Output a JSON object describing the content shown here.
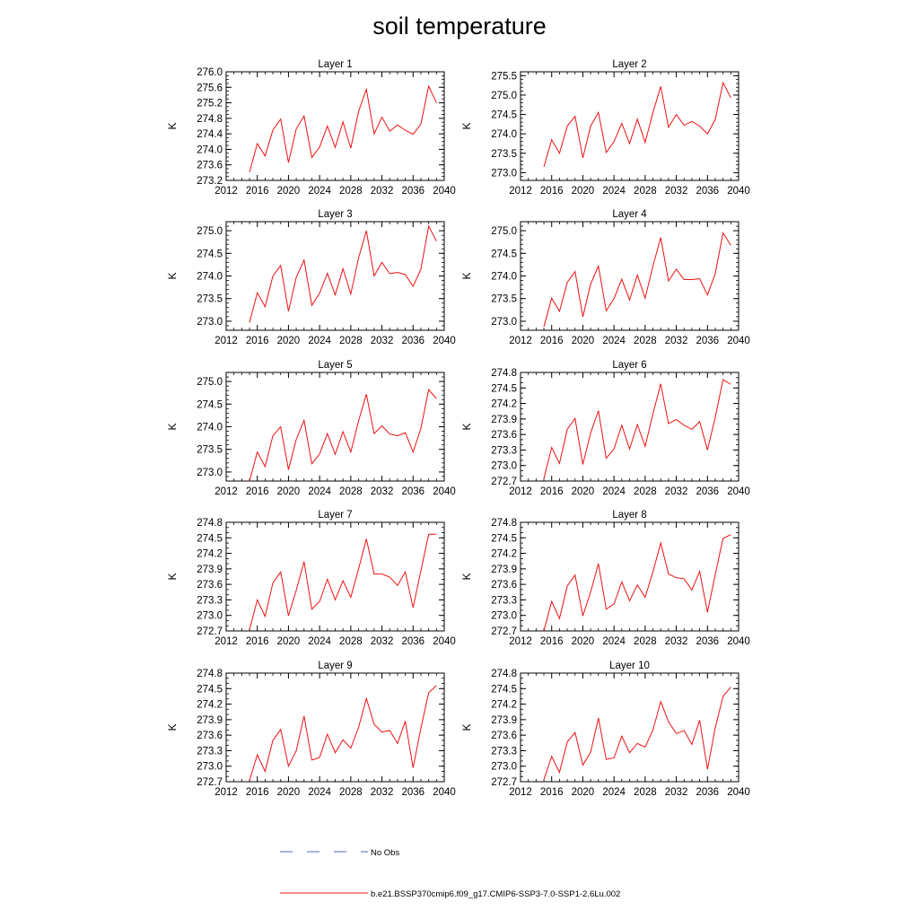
{
  "page": {
    "title": "soil temperature"
  },
  "chart_data": [
    {
      "type": "line",
      "title": "Layer 1",
      "ylabel": "K",
      "xlim": [
        2012,
        2040
      ],
      "xticks": [
        2012,
        2016,
        2020,
        2024,
        2028,
        2032,
        2036,
        2040
      ],
      "ylim": [
        273.2,
        276.0
      ],
      "yticks": [
        "273.2",
        "273.6",
        "274.0",
        "274.4",
        "274.8",
        "275.2",
        "275.6",
        "276.0"
      ],
      "yminor": 0.1,
      "x": [
        2015,
        2016,
        2017,
        2018,
        2019,
        2020,
        2021,
        2022,
        2023,
        2024,
        2025,
        2026,
        2027,
        2028,
        2029,
        2030,
        2031,
        2032,
        2033,
        2034,
        2035,
        2036,
        2037,
        2038,
        2039
      ],
      "series": [
        {
          "values": [
            273.41,
            274.15,
            273.83,
            274.5,
            274.78,
            273.66,
            274.53,
            274.86,
            273.79,
            274.06,
            274.6,
            274.05,
            274.71,
            274.03,
            274.98,
            275.55,
            274.4,
            274.83,
            274.47,
            274.63,
            274.49,
            274.39,
            274.65,
            275.63,
            275.2
          ],
          "color": "#ee1111"
        }
      ]
    },
    {
      "type": "line",
      "title": "Layer 2",
      "ylabel": "K",
      "xlim": [
        2012,
        2040
      ],
      "xticks": [
        2012,
        2016,
        2020,
        2024,
        2028,
        2032,
        2036,
        2040
      ],
      "ylim": [
        272.8,
        275.6
      ],
      "yticks": [
        "273.0",
        "273.5",
        "274.0",
        "274.5",
        "275.0",
        "275.5"
      ],
      "yminor": 0.1,
      "x": [
        2015,
        2016,
        2017,
        2018,
        2019,
        2020,
        2021,
        2022,
        2023,
        2024,
        2025,
        2026,
        2027,
        2028,
        2029,
        2030,
        2031,
        2032,
        2033,
        2034,
        2035,
        2036,
        2037,
        2038,
        2039
      ],
      "series": [
        {
          "values": [
            273.15,
            273.85,
            273.5,
            274.2,
            274.45,
            273.38,
            274.2,
            274.55,
            273.52,
            273.8,
            274.27,
            273.75,
            274.38,
            273.78,
            274.55,
            275.22,
            274.17,
            274.5,
            274.22,
            274.32,
            274.2,
            274.0,
            274.37,
            275.32,
            274.93
          ],
          "color": "#ee1111"
        }
      ]
    },
    {
      "type": "line",
      "title": "Layer 3",
      "ylabel": "K",
      "xlim": [
        2012,
        2040
      ],
      "xticks": [
        2012,
        2016,
        2020,
        2024,
        2028,
        2032,
        2036,
        2040
      ],
      "ylim": [
        272.8,
        275.2
      ],
      "yticks": [
        "273.0",
        "273.5",
        "274.0",
        "274.5",
        "275.0"
      ],
      "yminor": 0.1,
      "x": [
        2015,
        2016,
        2017,
        2018,
        2019,
        2020,
        2021,
        2022,
        2023,
        2024,
        2025,
        2026,
        2027,
        2028,
        2029,
        2030,
        2031,
        2032,
        2033,
        2034,
        2035,
        2036,
        2037,
        2038,
        2039
      ],
      "series": [
        {
          "values": [
            272.97,
            273.63,
            273.32,
            274.0,
            274.23,
            273.22,
            273.97,
            274.35,
            273.35,
            273.62,
            274.06,
            273.58,
            274.16,
            273.6,
            274.4,
            275.0,
            274.0,
            274.3,
            274.05,
            274.08,
            274.03,
            273.77,
            274.15,
            275.1,
            274.77
          ],
          "color": "#ee1111"
        }
      ]
    },
    {
      "type": "line",
      "title": "Layer 4",
      "ylabel": "K",
      "xlim": [
        2012,
        2040
      ],
      "xticks": [
        2012,
        2016,
        2020,
        2024,
        2028,
        2032,
        2036,
        2040
      ],
      "ylim": [
        272.8,
        275.2
      ],
      "yticks": [
        "273.0",
        "273.5",
        "274.0",
        "274.5",
        "275.0"
      ],
      "yminor": 0.1,
      "x": [
        2015,
        2016,
        2017,
        2018,
        2019,
        2020,
        2021,
        2022,
        2023,
        2024,
        2025,
        2026,
        2027,
        2028,
        2029,
        2030,
        2031,
        2032,
        2033,
        2034,
        2035,
        2036,
        2037,
        2038,
        2039
      ],
      "series": [
        {
          "values": [
            272.88,
            273.51,
            273.22,
            273.86,
            274.1,
            273.1,
            273.82,
            274.22,
            273.23,
            273.5,
            273.93,
            273.47,
            274.02,
            273.51,
            274.22,
            274.85,
            273.89,
            274.15,
            273.92,
            273.92,
            273.94,
            273.58,
            274.05,
            274.95,
            274.68
          ],
          "color": "#ee1111"
        }
      ]
    },
    {
      "type": "line",
      "title": "Layer 5",
      "ylabel": "K",
      "xlim": [
        2012,
        2040
      ],
      "xticks": [
        2012,
        2016,
        2020,
        2024,
        2028,
        2032,
        2036,
        2040
      ],
      "ylim": [
        272.8,
        275.2
      ],
      "yticks": [
        "273.0",
        "273.5",
        "274.0",
        "274.5",
        "275.0"
      ],
      "yminor": 0.1,
      "x": [
        2015,
        2016,
        2017,
        2018,
        2019,
        2020,
        2021,
        2022,
        2023,
        2024,
        2025,
        2026,
        2027,
        2028,
        2029,
        2030,
        2031,
        2032,
        2033,
        2034,
        2035,
        2036,
        2037,
        2038,
        2039
      ],
      "series": [
        {
          "values": [
            272.8,
            273.44,
            273.12,
            273.8,
            274.0,
            273.05,
            273.72,
            274.14,
            273.18,
            273.4,
            273.85,
            273.39,
            273.89,
            273.44,
            274.13,
            274.72,
            273.85,
            274.02,
            273.84,
            273.8,
            273.87,
            273.44,
            273.96,
            274.82,
            274.62
          ],
          "color": "#ee1111"
        }
      ]
    },
    {
      "type": "line",
      "title": "Layer 6",
      "ylabel": "K",
      "xlim": [
        2012,
        2040
      ],
      "xticks": [
        2012,
        2016,
        2020,
        2024,
        2028,
        2032,
        2036,
        2040
      ],
      "ylim": [
        272.7,
        274.8
      ],
      "yticks": [
        "272.7",
        "273.0",
        "273.3",
        "273.6",
        "273.9",
        "274.2",
        "274.5",
        "274.8"
      ],
      "yminor": 0.1,
      "x": [
        2015,
        2016,
        2017,
        2018,
        2019,
        2020,
        2021,
        2022,
        2023,
        2024,
        2025,
        2026,
        2027,
        2028,
        2029,
        2030,
        2031,
        2032,
        2033,
        2034,
        2035,
        2036,
        2037,
        2038,
        2039
      ],
      "series": [
        {
          "values": [
            272.75,
            273.35,
            273.04,
            273.7,
            273.91,
            273.02,
            273.63,
            274.06,
            273.14,
            273.32,
            273.78,
            273.32,
            273.79,
            273.37,
            274.0,
            274.58,
            273.81,
            273.89,
            273.78,
            273.7,
            273.85,
            273.3,
            273.93,
            274.66,
            274.57
          ],
          "color": "#ee1111"
        }
      ]
    },
    {
      "type": "line",
      "title": "Layer 7",
      "ylabel": "K",
      "xlim": [
        2012,
        2040
      ],
      "xticks": [
        2012,
        2016,
        2020,
        2024,
        2028,
        2032,
        2036,
        2040
      ],
      "ylim": [
        272.7,
        274.8
      ],
      "yticks": [
        "272.7",
        "273.0",
        "273.3",
        "273.6",
        "273.9",
        "274.2",
        "274.5",
        "274.8"
      ],
      "yminor": 0.1,
      "x": [
        2015,
        2016,
        2017,
        2018,
        2019,
        2020,
        2021,
        2022,
        2023,
        2024,
        2025,
        2026,
        2027,
        2028,
        2029,
        2030,
        2031,
        2032,
        2033,
        2034,
        2035,
        2036,
        2037,
        2038,
        2039
      ],
      "series": [
        {
          "values": [
            272.72,
            273.3,
            272.98,
            273.63,
            273.84,
            272.99,
            273.49,
            274.04,
            273.12,
            273.27,
            273.7,
            273.3,
            273.67,
            273.35,
            273.9,
            274.48,
            273.8,
            273.8,
            273.74,
            273.58,
            273.84,
            273.15,
            273.86,
            274.57,
            274.57
          ],
          "color": "#ee1111"
        }
      ]
    },
    {
      "type": "line",
      "title": "Layer 8",
      "ylabel": "K",
      "xlim": [
        2012,
        2040
      ],
      "xticks": [
        2012,
        2016,
        2020,
        2024,
        2028,
        2032,
        2036,
        2040
      ],
      "ylim": [
        272.7,
        274.8
      ],
      "yticks": [
        "272.7",
        "273.0",
        "273.3",
        "273.6",
        "273.9",
        "274.2",
        "274.5",
        "274.8"
      ],
      "yminor": 0.1,
      "x": [
        2015,
        2016,
        2017,
        2018,
        2019,
        2020,
        2021,
        2022,
        2023,
        2024,
        2025,
        2026,
        2027,
        2028,
        2029,
        2030,
        2031,
        2032,
        2033,
        2034,
        2035,
        2036,
        2037,
        2038,
        2039
      ],
      "series": [
        {
          "values": [
            272.7,
            273.27,
            272.94,
            273.57,
            273.78,
            272.99,
            273.45,
            274.0,
            273.12,
            273.22,
            273.65,
            273.28,
            273.59,
            273.35,
            273.84,
            274.4,
            273.8,
            273.73,
            273.71,
            273.49,
            273.85,
            273.06,
            273.79,
            274.49,
            274.56
          ],
          "color": "#ee1111"
        }
      ]
    },
    {
      "type": "line",
      "title": "Layer 9",
      "ylabel": "K",
      "xlim": [
        2012,
        2040
      ],
      "xticks": [
        2012,
        2016,
        2020,
        2024,
        2028,
        2032,
        2036,
        2040
      ],
      "ylim": [
        272.7,
        274.8
      ],
      "yticks": [
        "272.7",
        "273.0",
        "273.3",
        "273.6",
        "273.9",
        "274.2",
        "274.5",
        "274.8"
      ],
      "yminor": 0.1,
      "x": [
        2015,
        2016,
        2017,
        2018,
        2019,
        2020,
        2021,
        2022,
        2023,
        2024,
        2025,
        2026,
        2027,
        2028,
        2029,
        2030,
        2031,
        2032,
        2033,
        2034,
        2035,
        2036,
        2037,
        2038,
        2039
      ],
      "series": [
        {
          "values": [
            272.72,
            273.22,
            272.9,
            273.5,
            273.71,
            273.0,
            273.3,
            273.97,
            273.12,
            273.17,
            273.62,
            273.26,
            273.51,
            273.35,
            273.75,
            274.31,
            273.81,
            273.66,
            273.69,
            273.44,
            273.87,
            272.97,
            273.73,
            274.42,
            274.56
          ],
          "color": "#ee1111"
        }
      ]
    },
    {
      "type": "line",
      "title": "Layer 10",
      "ylabel": "K",
      "xlim": [
        2012,
        2040
      ],
      "xticks": [
        2012,
        2016,
        2020,
        2024,
        2028,
        2032,
        2036,
        2040
      ],
      "ylim": [
        272.7,
        274.8
      ],
      "yticks": [
        "272.7",
        "273.0",
        "273.3",
        "273.6",
        "273.9",
        "274.2",
        "274.5",
        "274.8"
      ],
      "yminor": 0.1,
      "x": [
        2015,
        2016,
        2017,
        2018,
        2019,
        2020,
        2021,
        2022,
        2023,
        2024,
        2025,
        2026,
        2027,
        2028,
        2029,
        2030,
        2031,
        2032,
        2033,
        2034,
        2035,
        2036,
        2037,
        2038,
        2039
      ],
      "series": [
        {
          "values": [
            272.74,
            273.19,
            272.88,
            273.47,
            273.65,
            273.02,
            273.27,
            273.93,
            273.13,
            273.16,
            273.58,
            273.26,
            273.44,
            273.37,
            273.7,
            274.25,
            273.86,
            273.63,
            273.69,
            273.42,
            273.89,
            272.94,
            273.74,
            274.35,
            274.53
          ],
          "color": "#ee1111"
        }
      ]
    }
  ],
  "legend": [
    {
      "label": "No Obs",
      "style": "dashed",
      "color": "#5566bb"
    },
    {
      "label": "b.e21.BSSP370cmip6.f09_g17.CMIP6-SSP3-7.0-SSP1-2.6Lu.002",
      "style": "solid",
      "color": "#ee1111"
    }
  ]
}
